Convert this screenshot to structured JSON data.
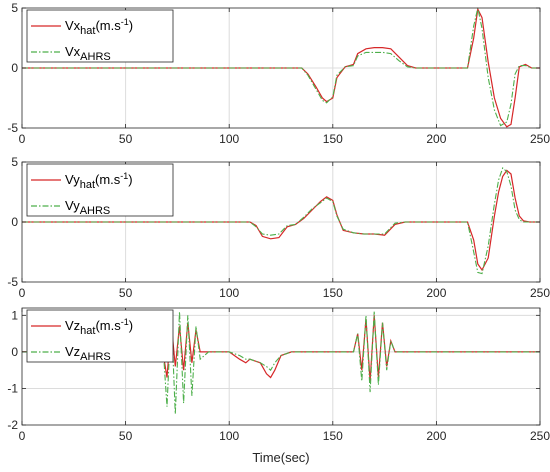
{
  "chart_data": [
    {
      "type": "line",
      "xlim": [
        0,
        250
      ],
      "ylim": [
        -5,
        5
      ],
      "xticks": [
        0,
        50,
        100,
        150,
        200,
        250
      ],
      "yticks": [
        -5,
        0,
        5
      ],
      "grid": true,
      "legend_position": "top-left",
      "series": [
        {
          "name_main": "Vx",
          "name_sub": "hat",
          "name_suffix": "(m.s",
          "name_sup": "-1",
          "name_close": ")",
          "color": "#d62728",
          "x": [
            0,
            5,
            10,
            20,
            30,
            40,
            50,
            55,
            60,
            65,
            70,
            75,
            80,
            85,
            90,
            95,
            100,
            105,
            110,
            115,
            118,
            120,
            122,
            125,
            130,
            135,
            138,
            142,
            145,
            147,
            150,
            152,
            156,
            160,
            162,
            166,
            170,
            174,
            178,
            182,
            186,
            190,
            195,
            200,
            205,
            210,
            215,
            218,
            220,
            222,
            225,
            228,
            231,
            234,
            236,
            238,
            240,
            243,
            246,
            250
          ],
          "y": [
            0,
            0,
            0,
            0,
            0,
            0,
            0,
            0,
            0,
            0,
            0,
            0,
            0,
            0,
            0,
            0,
            0,
            0,
            0,
            0,
            0,
            0,
            0,
            0,
            0,
            0,
            -0.5,
            -1.6,
            -2.5,
            -2.8,
            -2.5,
            -0.8,
            0.1,
            0.3,
            1.2,
            1.6,
            1.7,
            1.7,
            1.6,
            0.9,
            0.2,
            0,
            0,
            0,
            0,
            0,
            0,
            2.5,
            4.9,
            4.2,
            0.5,
            -2.5,
            -4.2,
            -4.9,
            -4.7,
            -2.5,
            0.1,
            0.3,
            0,
            0
          ]
        },
        {
          "name_main": "Vx",
          "name_sub": "AHRS",
          "name_suffix": "",
          "name_sup": "",
          "name_close": "",
          "color": "#4daf4a",
          "x": [
            0,
            5,
            10,
            20,
            30,
            40,
            50,
            55,
            60,
            65,
            70,
            75,
            80,
            85,
            90,
            95,
            100,
            105,
            110,
            115,
            118,
            120,
            122,
            125,
            130,
            135,
            138,
            142,
            145,
            147,
            150,
            152,
            156,
            160,
            162,
            166,
            170,
            174,
            178,
            182,
            186,
            190,
            195,
            200,
            205,
            210,
            215,
            218,
            220,
            222,
            225,
            228,
            231,
            234,
            236,
            238,
            240,
            243,
            246,
            250
          ],
          "y": [
            0,
            0,
            0,
            0,
            0,
            0,
            0,
            0,
            0,
            0,
            0,
            0,
            0,
            0,
            0,
            0,
            0,
            0,
            0,
            0,
            0,
            0,
            0,
            0,
            0,
            0,
            -0.6,
            -1.8,
            -2.7,
            -2.9,
            -2.4,
            -0.6,
            0.1,
            0.2,
            1.0,
            1.3,
            1.3,
            1.3,
            1.2,
            0.6,
            0.1,
            0,
            0,
            0,
            0,
            0,
            0,
            3.5,
            5.0,
            3.3,
            -0.8,
            -3.5,
            -4.8,
            -4.5,
            -3.0,
            -0.5,
            0.2,
            0.2,
            0,
            0
          ]
        }
      ]
    },
    {
      "type": "line",
      "xlim": [
        0,
        250
      ],
      "ylim": [
        -5,
        5
      ],
      "xticks": [
        0,
        50,
        100,
        150,
        200,
        250
      ],
      "yticks": [
        -5,
        0,
        5
      ],
      "grid": true,
      "legend_position": "top-left",
      "series": [
        {
          "name_main": "Vy",
          "name_sub": "hat",
          "name_suffix": "(m.s",
          "name_sup": "-1",
          "name_close": ")",
          "color": "#d62728",
          "x": [
            0,
            10,
            20,
            30,
            40,
            50,
            60,
            70,
            80,
            90,
            100,
            110,
            113,
            116,
            120,
            124,
            128,
            132,
            136,
            140,
            144,
            147,
            150,
            152,
            155,
            160,
            165,
            170,
            175,
            180,
            185,
            190,
            200,
            210,
            215,
            218,
            220,
            222,
            225,
            228,
            230,
            232,
            234,
            236,
            238,
            240,
            242,
            245,
            250
          ],
          "y": [
            0,
            0,
            0,
            0,
            0,
            0,
            0,
            0,
            0,
            0,
            0,
            0,
            -0.3,
            -1.2,
            -1.4,
            -1.3,
            -0.4,
            -0.2,
            0.3,
            1.0,
            1.7,
            2.1,
            1.8,
            0.6,
            -0.7,
            -0.9,
            -1.0,
            -1.0,
            -1.1,
            -0.2,
            0,
            0,
            0,
            0,
            0,
            -1.5,
            -3.5,
            -4.0,
            -3.0,
            0.5,
            2.5,
            3.8,
            4.3,
            4.0,
            2.0,
            0.5,
            0.1,
            0,
            0
          ]
        },
        {
          "name_main": "Vy",
          "name_sub": "AHRS",
          "name_suffix": "",
          "name_sup": "",
          "name_close": "",
          "color": "#4daf4a",
          "x": [
            0,
            10,
            20,
            30,
            40,
            50,
            60,
            70,
            80,
            90,
            100,
            110,
            113,
            116,
            120,
            124,
            128,
            132,
            136,
            140,
            144,
            147,
            150,
            152,
            155,
            160,
            165,
            170,
            175,
            180,
            185,
            190,
            200,
            210,
            215,
            218,
            220,
            222,
            225,
            228,
            230,
            232,
            234,
            236,
            238,
            240,
            242,
            245,
            250
          ],
          "y": [
            0,
            0,
            0,
            0,
            0,
            0,
            0,
            0,
            0,
            0,
            0,
            0,
            -0.4,
            -1.0,
            -1.1,
            -1.0,
            -0.3,
            -0.2,
            0.4,
            1.1,
            1.6,
            2.0,
            1.7,
            0.5,
            -0.6,
            -0.9,
            -1.0,
            -1.0,
            -1.0,
            -0.1,
            0,
            0,
            0,
            0,
            0,
            -2.5,
            -4.2,
            -4.3,
            -2.0,
            1.5,
            3.5,
            4.5,
            4.2,
            3.0,
            1.0,
            0.2,
            0,
            0,
            0
          ]
        }
      ]
    },
    {
      "type": "line",
      "xlim": [
        0,
        250
      ],
      "ylim": [
        -2,
        1.2
      ],
      "xticks": [
        0,
        50,
        100,
        150,
        200,
        250
      ],
      "yticks": [
        -2,
        -1,
        0,
        1
      ],
      "grid": true,
      "legend_position": "top-left",
      "xlabel": "Time(sec)",
      "series": [
        {
          "name_main": "Vz",
          "name_sub": "hat",
          "name_suffix": "(m.s",
          "name_sup": "-1",
          "name_close": ")",
          "color": "#d62728",
          "x": [
            0,
            20,
            40,
            60,
            68,
            70,
            72,
            74,
            76,
            78,
            80,
            82,
            84,
            86,
            90,
            100,
            105,
            108,
            110,
            115,
            118,
            120,
            122,
            125,
            130,
            140,
            145,
            150,
            155,
            160,
            162,
            164,
            166,
            168,
            170,
            172,
            174,
            176,
            178,
            180,
            190,
            200,
            210,
            215,
            220,
            225,
            230,
            235,
            240,
            245,
            250
          ],
          "y": [
            0,
            0,
            0,
            0,
            0,
            -0.7,
            0.8,
            -0.4,
            0.7,
            -0.5,
            0.8,
            -0.3,
            0.6,
            0,
            0,
            0,
            -0.2,
            -0.3,
            -0.2,
            -0.3,
            -0.6,
            -0.7,
            -0.5,
            -0.1,
            0,
            0,
            0,
            0,
            0,
            0,
            0.5,
            -0.5,
            0.9,
            -0.8,
            1.0,
            -0.7,
            0.8,
            -0.4,
            0.3,
            0,
            0,
            0,
            0,
            0,
            0,
            0,
            0,
            0,
            0,
            0,
            0
          ]
        },
        {
          "name_main": "Vz",
          "name_sub": "AHRS",
          "name_suffix": "",
          "name_sup": "",
          "name_close": "",
          "color": "#4daf4a",
          "x": [
            0,
            20,
            40,
            60,
            68,
            70,
            72,
            74,
            76,
            78,
            80,
            82,
            84,
            86,
            90,
            100,
            105,
            108,
            110,
            115,
            118,
            120,
            122,
            125,
            130,
            140,
            145,
            150,
            155,
            160,
            162,
            164,
            166,
            168,
            170,
            172,
            174,
            176,
            178,
            180,
            190,
            200,
            210,
            215,
            220,
            225,
            230,
            235,
            240,
            245,
            250
          ],
          "y": [
            0,
            0,
            0,
            0,
            0.2,
            -1.5,
            1.1,
            -1.7,
            1.1,
            -1.4,
            1.0,
            -1.2,
            0.7,
            -0.2,
            0,
            0,
            -0.1,
            -0.2,
            -0.2,
            -0.3,
            -0.4,
            -0.5,
            -0.3,
            -0.1,
            0,
            0,
            0,
            0,
            0,
            0,
            0.5,
            -0.8,
            1.0,
            -1.1,
            1.1,
            -0.9,
            0.8,
            -0.5,
            0.3,
            0,
            0,
            0,
            0,
            0,
            0,
            0,
            0,
            0,
            0,
            0,
            0
          ]
        }
      ]
    }
  ]
}
